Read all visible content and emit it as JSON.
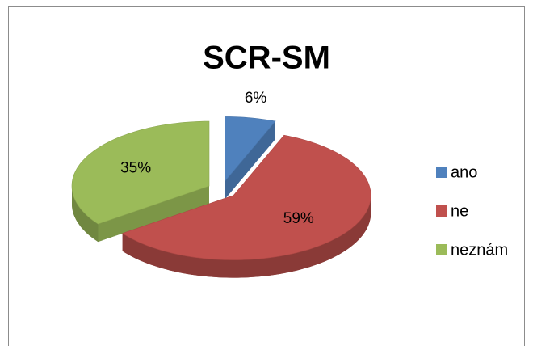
{
  "chart_data": {
    "type": "pie3d",
    "title": "SCR-SM",
    "categories": [
      "ano",
      "ne",
      "neznám"
    ],
    "values": [
      6,
      59,
      35
    ],
    "value_labels": [
      "6%",
      "59%",
      "35%"
    ],
    "colors": [
      "#4f81bd",
      "#c0504d",
      "#9bbb59"
    ],
    "legend": "right"
  }
}
